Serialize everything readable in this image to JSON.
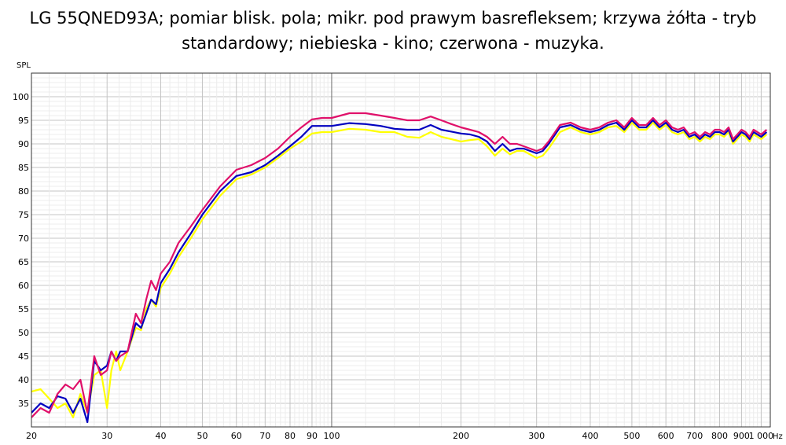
{
  "title_line1": "LG 55QNED93A; pomiar blisk. pola; mikr. pod prawym basrefleksem; krzywa żółta - tryb",
  "title_line2": "standardowy; niebieska - kino; czerwona - muzyka.",
  "chart_data": {
    "type": "line",
    "ylabel": "SPL",
    "xunit": "Hz",
    "xscale": "log",
    "xlim": [
      20,
      1050
    ],
    "ylim": [
      30,
      105
    ],
    "grid": true,
    "y_ticks": [
      35,
      40,
      45,
      50,
      55,
      60,
      65,
      70,
      75,
      80,
      85,
      90,
      95,
      100
    ],
    "x_ticks": [
      {
        "value": 20,
        "label": "20"
      },
      {
        "value": 30,
        "label": "30"
      },
      {
        "value": 40,
        "label": "40"
      },
      {
        "value": 50,
        "label": "50"
      },
      {
        "value": 60,
        "label": "60"
      },
      {
        "value": 70,
        "label": "70"
      },
      {
        "value": 80,
        "label": "80"
      },
      {
        "value": 90,
        "label": "90"
      },
      {
        "value": 100,
        "label": "100"
      },
      {
        "value": 200,
        "label": "200"
      },
      {
        "value": 300,
        "label": "300"
      },
      {
        "value": 400,
        "label": "400"
      },
      {
        "value": 500,
        "label": "500"
      },
      {
        "value": 600,
        "label": "600"
      },
      {
        "value": 700,
        "label": "700"
      },
      {
        "value": 800,
        "label": "800"
      },
      {
        "value": 900,
        "label": "900"
      },
      {
        "value": 1000,
        "label": "1 000"
      }
    ],
    "marker_x": 100,
    "series": [
      {
        "color": "#ffff00",
        "points": [
          [
            20,
            37.5
          ],
          [
            21,
            38
          ],
          [
            22,
            36
          ],
          [
            23,
            34
          ],
          [
            24,
            35
          ],
          [
            25,
            32
          ],
          [
            26,
            37
          ],
          [
            27,
            33
          ],
          [
            28,
            41
          ],
          [
            29,
            42
          ],
          [
            30,
            34
          ],
          [
            30.7,
            42
          ],
          [
            31.5,
            46
          ],
          [
            32.2,
            42
          ],
          [
            33.5,
            46
          ],
          [
            35,
            51
          ],
          [
            36,
            50.5
          ],
          [
            37,
            55
          ],
          [
            38,
            57
          ],
          [
            39,
            55.5
          ],
          [
            40,
            59.5
          ],
          [
            42,
            62.5
          ],
          [
            44,
            66
          ],
          [
            47,
            70
          ],
          [
            50,
            74
          ],
          [
            55,
            79
          ],
          [
            60,
            82.5
          ],
          [
            65,
            83.5
          ],
          [
            70,
            85
          ],
          [
            75,
            87
          ],
          [
            80,
            89
          ],
          [
            85,
            90.5
          ],
          [
            90,
            92.2
          ],
          [
            95,
            92.5
          ],
          [
            100,
            92.5
          ],
          [
            110,
            93.2
          ],
          [
            120,
            93
          ],
          [
            130,
            92.5
          ],
          [
            140,
            92.5
          ],
          [
            150,
            91.5
          ],
          [
            160,
            91.3
          ],
          [
            170,
            92.5
          ],
          [
            180,
            91.5
          ],
          [
            190,
            91
          ],
          [
            200,
            90.5
          ],
          [
            210,
            90.8
          ],
          [
            220,
            91
          ],
          [
            230,
            89.5
          ],
          [
            240,
            87.5
          ],
          [
            250,
            89
          ],
          [
            260,
            87.8
          ],
          [
            270,
            88.5
          ],
          [
            280,
            88.5
          ],
          [
            300,
            87
          ],
          [
            310,
            87.5
          ],
          [
            320,
            89
          ],
          [
            340,
            92.5
          ],
          [
            360,
            93.5
          ],
          [
            380,
            92.5
          ],
          [
            400,
            92
          ],
          [
            420,
            92.5
          ],
          [
            440,
            93.5
          ],
          [
            460,
            93.8
          ],
          [
            480,
            92.5
          ],
          [
            500,
            94.5
          ],
          [
            520,
            93
          ],
          [
            540,
            93
          ],
          [
            560,
            94.5
          ],
          [
            580,
            93
          ],
          [
            600,
            94
          ],
          [
            620,
            92.5
          ],
          [
            640,
            92
          ],
          [
            660,
            92.5
          ],
          [
            680,
            91
          ],
          [
            700,
            91.5
          ],
          [
            720,
            90.5
          ],
          [
            740,
            91.5
          ],
          [
            760,
            91
          ],
          [
            780,
            92
          ],
          [
            800,
            92
          ],
          [
            820,
            91.5
          ],
          [
            840,
            92.5
          ],
          [
            860,
            90
          ],
          [
            880,
            91
          ],
          [
            900,
            92
          ],
          [
            920,
            91.5
          ],
          [
            940,
            90.5
          ],
          [
            960,
            92
          ],
          [
            980,
            91.5
          ],
          [
            1000,
            91
          ],
          [
            1030,
            92
          ]
        ]
      },
      {
        "color": "#0000c0",
        "points": [
          [
            20,
            33
          ],
          [
            21,
            35
          ],
          [
            22,
            34
          ],
          [
            23,
            36.5
          ],
          [
            24,
            36
          ],
          [
            25,
            33
          ],
          [
            26,
            36
          ],
          [
            27,
            31
          ],
          [
            28,
            44
          ],
          [
            29,
            42
          ],
          [
            30,
            43
          ],
          [
            30.7,
            46
          ],
          [
            31.5,
            44
          ],
          [
            32.2,
            46
          ],
          [
            33.5,
            46
          ],
          [
            35,
            52
          ],
          [
            36,
            51
          ],
          [
            37,
            54
          ],
          [
            38,
            57
          ],
          [
            39,
            56
          ],
          [
            40,
            60.5
          ],
          [
            42,
            63.5
          ],
          [
            44,
            67
          ],
          [
            47,
            71
          ],
          [
            50,
            75
          ],
          [
            55,
            80
          ],
          [
            60,
            83.2
          ],
          [
            65,
            84
          ],
          [
            70,
            85.5
          ],
          [
            75,
            87.5
          ],
          [
            80,
            89.5
          ],
          [
            85,
            91.5
          ],
          [
            90,
            93.8
          ],
          [
            95,
            93.8
          ],
          [
            100,
            93.8
          ],
          [
            110,
            94.4
          ],
          [
            120,
            94.2
          ],
          [
            130,
            93.8
          ],
          [
            140,
            93.2
          ],
          [
            150,
            93
          ],
          [
            160,
            93
          ],
          [
            170,
            94
          ],
          [
            180,
            93
          ],
          [
            190,
            92.6
          ],
          [
            200,
            92.2
          ],
          [
            210,
            92
          ],
          [
            220,
            91.5
          ],
          [
            230,
            90.5
          ],
          [
            240,
            88.5
          ],
          [
            250,
            90
          ],
          [
            260,
            88.5
          ],
          [
            270,
            89
          ],
          [
            280,
            89
          ],
          [
            300,
            88
          ],
          [
            310,
            88.5
          ],
          [
            320,
            90
          ],
          [
            340,
            93.5
          ],
          [
            360,
            94
          ],
          [
            380,
            93
          ],
          [
            400,
            92.5
          ],
          [
            420,
            93
          ],
          [
            440,
            94
          ],
          [
            460,
            94.5
          ],
          [
            480,
            93
          ],
          [
            500,
            95
          ],
          [
            520,
            93.5
          ],
          [
            540,
            93.5
          ],
          [
            560,
            95
          ],
          [
            580,
            93.5
          ],
          [
            600,
            94.5
          ],
          [
            620,
            93
          ],
          [
            640,
            92.5
          ],
          [
            660,
            93
          ],
          [
            680,
            91.5
          ],
          [
            700,
            92
          ],
          [
            720,
            91
          ],
          [
            740,
            92
          ],
          [
            760,
            91.5
          ],
          [
            780,
            92.5
          ],
          [
            800,
            92.5
          ],
          [
            820,
            92
          ],
          [
            840,
            93
          ],
          [
            860,
            90.5
          ],
          [
            880,
            91.5
          ],
          [
            900,
            92.5
          ],
          [
            920,
            92
          ],
          [
            940,
            91
          ],
          [
            960,
            92.5
          ],
          [
            980,
            92
          ],
          [
            1000,
            91.5
          ],
          [
            1030,
            92.5
          ]
        ]
      },
      {
        "color": "#e0106a",
        "points": [
          [
            20,
            32
          ],
          [
            21,
            34
          ],
          [
            22,
            33
          ],
          [
            23,
            37
          ],
          [
            24,
            39
          ],
          [
            25,
            38
          ],
          [
            26,
            40
          ],
          [
            27,
            33
          ],
          [
            28,
            45
          ],
          [
            29,
            41
          ],
          [
            30,
            42
          ],
          [
            30.7,
            46
          ],
          [
            31.5,
            44
          ],
          [
            32.2,
            45
          ],
          [
            33.5,
            46
          ],
          [
            35,
            54
          ],
          [
            36,
            52
          ],
          [
            37,
            57
          ],
          [
            38,
            61
          ],
          [
            39,
            59
          ],
          [
            40,
            62.5
          ],
          [
            42,
            65
          ],
          [
            44,
            69
          ],
          [
            47,
            72.5
          ],
          [
            50,
            76
          ],
          [
            55,
            81
          ],
          [
            60,
            84.5
          ],
          [
            65,
            85.5
          ],
          [
            70,
            87
          ],
          [
            75,
            89
          ],
          [
            80,
            91.5
          ],
          [
            85,
            93.5
          ],
          [
            90,
            95.2
          ],
          [
            95,
            95.5
          ],
          [
            100,
            95.5
          ],
          [
            110,
            96.5
          ],
          [
            120,
            96.5
          ],
          [
            130,
            96
          ],
          [
            140,
            95.5
          ],
          [
            150,
            95
          ],
          [
            160,
            95
          ],
          [
            170,
            95.8
          ],
          [
            180,
            95
          ],
          [
            190,
            94.2
          ],
          [
            200,
            93.5
          ],
          [
            210,
            93
          ],
          [
            220,
            92.5
          ],
          [
            230,
            91.5
          ],
          [
            240,
            90
          ],
          [
            250,
            91.5
          ],
          [
            260,
            90
          ],
          [
            270,
            90
          ],
          [
            280,
            89.5
          ],
          [
            300,
            88.5
          ],
          [
            310,
            89
          ],
          [
            320,
            90.5
          ],
          [
            340,
            94
          ],
          [
            360,
            94.5
          ],
          [
            380,
            93.5
          ],
          [
            400,
            93
          ],
          [
            420,
            93.5
          ],
          [
            440,
            94.5
          ],
          [
            460,
            95
          ],
          [
            480,
            93.5
          ],
          [
            500,
            95.5
          ],
          [
            520,
            94
          ],
          [
            540,
            94
          ],
          [
            560,
            95.5
          ],
          [
            580,
            94
          ],
          [
            600,
            95
          ],
          [
            620,
            93.5
          ],
          [
            640,
            93
          ],
          [
            660,
            93.5
          ],
          [
            680,
            92
          ],
          [
            700,
            92.5
          ],
          [
            720,
            91.5
          ],
          [
            740,
            92.5
          ],
          [
            760,
            92
          ],
          [
            780,
            93
          ],
          [
            800,
            93
          ],
          [
            820,
            92.5
          ],
          [
            840,
            93.5
          ],
          [
            860,
            91
          ],
          [
            880,
            92
          ],
          [
            900,
            93
          ],
          [
            920,
            92.5
          ],
          [
            940,
            91.5
          ],
          [
            960,
            93
          ],
          [
            980,
            92.5
          ],
          [
            1000,
            92
          ],
          [
            1030,
            93
          ]
        ]
      }
    ]
  }
}
